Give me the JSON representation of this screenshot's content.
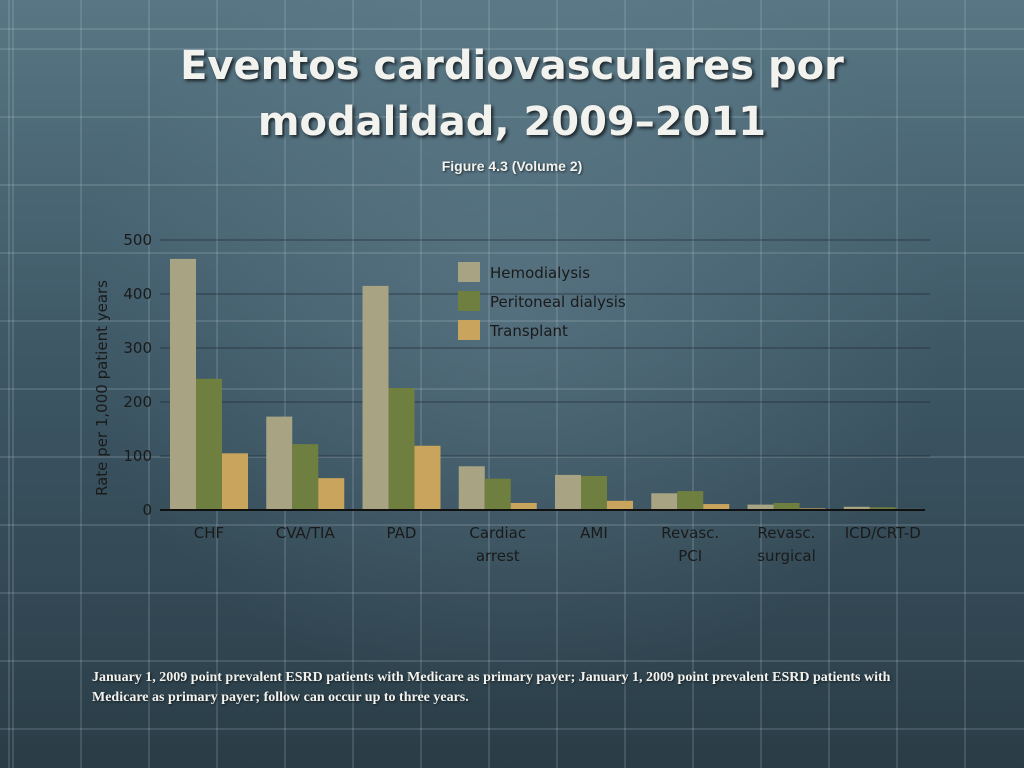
{
  "slide": {
    "title_line1": "Eventos cardiovasculares por",
    "title_line2": "modalidad, 2009–2011",
    "subtitle": "Figure 4.3 (Volume 2)",
    "footnote": "January 1, 2009 point prevalent ESRD patients with Medicare as primary payer; January 1, 2009 point prevalent ESRD patients with Medicare as primary payer; follow can occur up to three years."
  },
  "chart_data": {
    "type": "bar",
    "title": "",
    "xlabel": "",
    "ylabel": "Rate per 1,000 patient years",
    "ylim": [
      0,
      500
    ],
    "yticks": [
      0,
      100,
      200,
      300,
      400,
      500
    ],
    "grid": true,
    "legend_position": "top-center",
    "categories": [
      [
        "CHF"
      ],
      [
        "CVA/TIA"
      ],
      [
        "PAD"
      ],
      [
        "Cardiac",
        "arrest"
      ],
      [
        "AMI"
      ],
      [
        "Revasc.",
        "PCI"
      ],
      [
        "Revasc.",
        "surgical"
      ],
      [
        "ICD/CRT-D"
      ]
    ],
    "series": [
      {
        "name": "Hemodialysis",
        "color": "#a8a383",
        "values": [
          465,
          173,
          415,
          81,
          65,
          31,
          10,
          6
        ]
      },
      {
        "name": "Peritoneal dialysis",
        "color": "#6e7f40",
        "values": [
          243,
          122,
          226,
          58,
          63,
          35,
          13,
          5
        ]
      },
      {
        "name": "Transplant",
        "color": "#c9a45c",
        "values": [
          105,
          59,
          119,
          13,
          17,
          11,
          3,
          2
        ]
      }
    ]
  }
}
